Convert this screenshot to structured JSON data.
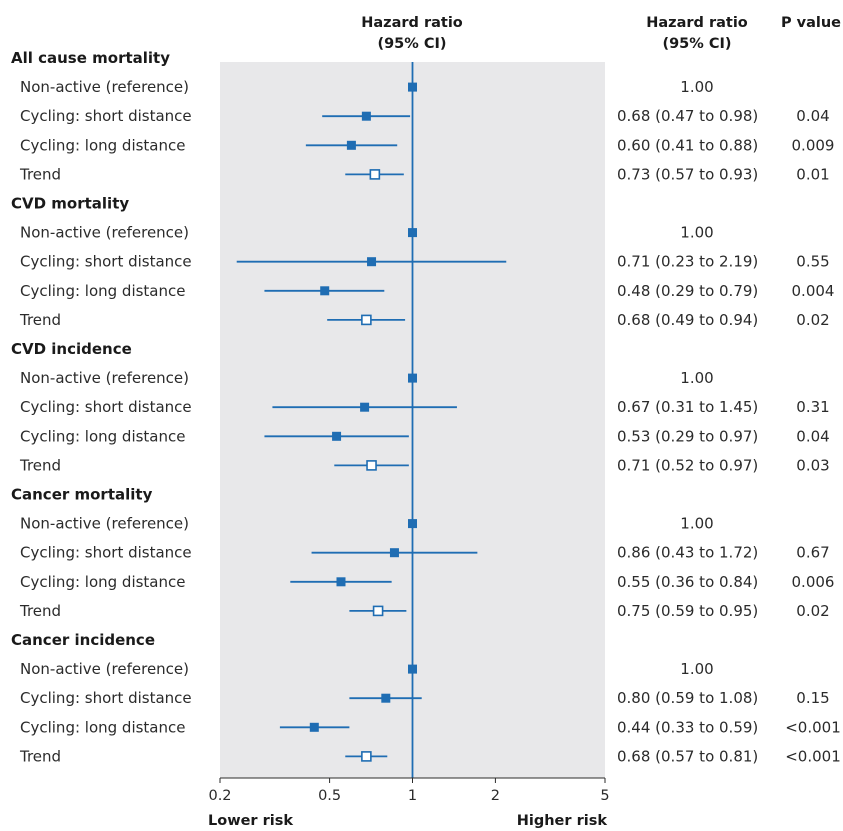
{
  "chart_data": {
    "type": "forest",
    "header": {
      "plot_title": [
        "Hazard ratio",
        "(95% CI)"
      ],
      "hr_column": [
        "Hazard ratio",
        "(95% CI)"
      ],
      "p_column": "P value"
    },
    "x_axis": {
      "scale": "log",
      "range": [
        0.2,
        5
      ],
      "reference": 1,
      "ticks": [
        0.2,
        0.5,
        1,
        2,
        5
      ],
      "tick_labels": [
        "0.2",
        "0.5",
        "1",
        "2",
        "5"
      ],
      "left_label": "Lower risk",
      "right_label": "Higher risk"
    },
    "groups": [
      {
        "title": "All cause mortality",
        "rows": [
          {
            "label": "Non-active (reference)",
            "hr": 1.0,
            "lo": null,
            "hi": null,
            "marker": "filled",
            "text": "1.00",
            "p": ""
          },
          {
            "label": "Cycling: short distance",
            "hr": 0.68,
            "lo": 0.47,
            "hi": 0.98,
            "marker": "filled",
            "text": "0.68 (0.47 to 0.98)",
            "p": "0.04"
          },
          {
            "label": "Cycling: long distance",
            "hr": 0.6,
            "lo": 0.41,
            "hi": 0.88,
            "marker": "filled",
            "text": "0.60 (0.41 to 0.88)",
            "p": "0.009"
          },
          {
            "label": "Trend",
            "hr": 0.73,
            "lo": 0.57,
            "hi": 0.93,
            "marker": "open",
            "text": "0.73 (0.57 to 0.93)",
            "p": "0.01"
          }
        ]
      },
      {
        "title": "CVD mortality",
        "rows": [
          {
            "label": "Non-active (reference)",
            "hr": 1.0,
            "lo": null,
            "hi": null,
            "marker": "filled",
            "text": "1.00",
            "p": ""
          },
          {
            "label": "Cycling: short distance",
            "hr": 0.71,
            "lo": 0.23,
            "hi": 2.19,
            "marker": "filled",
            "text": "0.71 (0.23 to 2.19)",
            "p": "0.55"
          },
          {
            "label": "Cycling: long distance",
            "hr": 0.48,
            "lo": 0.29,
            "hi": 0.79,
            "marker": "filled",
            "text": "0.48 (0.29 to 0.79)",
            "p": "0.004"
          },
          {
            "label": "Trend",
            "hr": 0.68,
            "lo": 0.49,
            "hi": 0.94,
            "marker": "open",
            "text": "0.68 (0.49 to 0.94)",
            "p": "0.02"
          }
        ]
      },
      {
        "title": "CVD incidence",
        "rows": [
          {
            "label": "Non-active (reference)",
            "hr": 1.0,
            "lo": null,
            "hi": null,
            "marker": "filled",
            "text": "1.00",
            "p": ""
          },
          {
            "label": "Cycling: short distance",
            "hr": 0.67,
            "lo": 0.31,
            "hi": 1.45,
            "marker": "filled",
            "text": "0.67 (0.31 to 1.45)",
            "p": "0.31"
          },
          {
            "label": "Cycling: long distance",
            "hr": 0.53,
            "lo": 0.29,
            "hi": 0.97,
            "marker": "filled",
            "text": "0.53 (0.29 to 0.97)",
            "p": "0.04"
          },
          {
            "label": "Trend",
            "hr": 0.71,
            "lo": 0.52,
            "hi": 0.97,
            "marker": "open",
            "text": "0.71 (0.52 to 0.97)",
            "p": "0.03"
          }
        ]
      },
      {
        "title": "Cancer mortality",
        "rows": [
          {
            "label": "Non-active (reference)",
            "hr": 1.0,
            "lo": null,
            "hi": null,
            "marker": "filled",
            "text": "1.00",
            "p": ""
          },
          {
            "label": "Cycling: short distance",
            "hr": 0.86,
            "lo": 0.43,
            "hi": 1.72,
            "marker": "filled",
            "text": "0.86 (0.43 to 1.72)",
            "p": "0.67"
          },
          {
            "label": "Cycling: long distance",
            "hr": 0.55,
            "lo": 0.36,
            "hi": 0.84,
            "marker": "filled",
            "text": "0.55 (0.36 to 0.84)",
            "p": "0.006"
          },
          {
            "label": "Trend",
            "hr": 0.75,
            "lo": 0.59,
            "hi": 0.95,
            "marker": "open",
            "text": "0.75 (0.59 to 0.95)",
            "p": "0.02"
          }
        ]
      },
      {
        "title": "Cancer incidence",
        "rows": [
          {
            "label": "Non-active (reference)",
            "hr": 1.0,
            "lo": null,
            "hi": null,
            "marker": "filled",
            "text": "1.00",
            "p": ""
          },
          {
            "label": "Cycling: short distance",
            "hr": 0.8,
            "lo": 0.59,
            "hi": 1.08,
            "marker": "filled",
            "text": "0.80 (0.59 to 1.08)",
            "p": "0.15"
          },
          {
            "label": "Cycling: long distance",
            "hr": 0.44,
            "lo": 0.33,
            "hi": 0.59,
            "marker": "filled",
            "text": "0.44 (0.33 to 0.59)",
            "p": "<0.001"
          },
          {
            "label": "Trend",
            "hr": 0.68,
            "lo": 0.57,
            "hi": 0.81,
            "marker": "open",
            "text": "0.68 (0.57 to 0.81)",
            "p": "<0.001"
          }
        ]
      }
    ],
    "colors": {
      "marker": "#1f6db3",
      "panel_bg": "#e8e8ea",
      "text": "#2b2b2b"
    }
  }
}
